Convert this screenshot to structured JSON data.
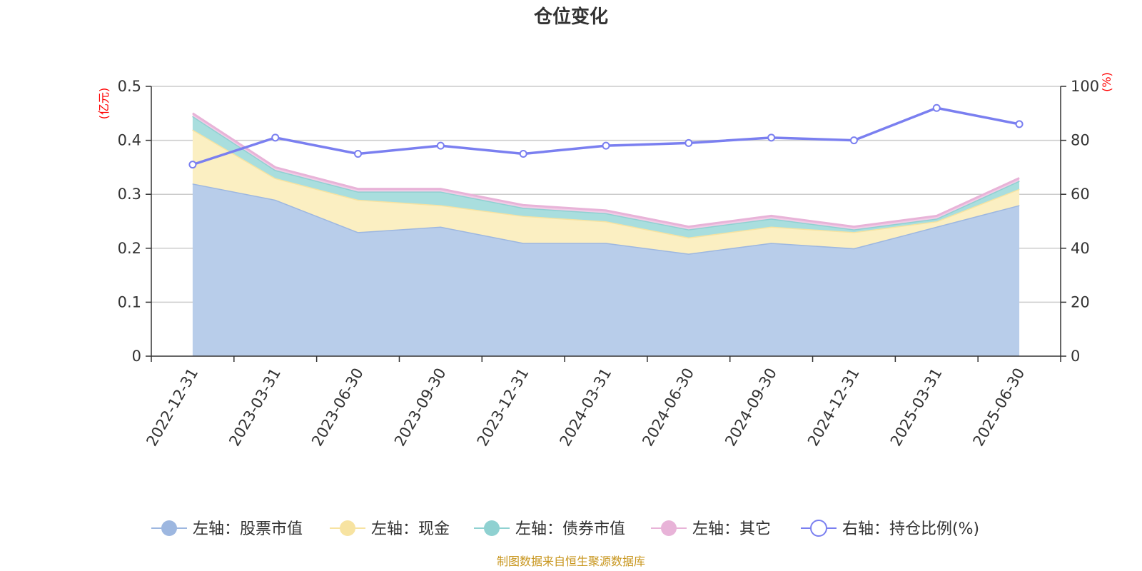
{
  "chart_data": {
    "type": "area",
    "title": "仓位变化",
    "source_note": "制图数据来自恒生聚源数据库",
    "categories": [
      "2022-12-31",
      "2023-03-31",
      "2023-06-30",
      "2023-09-30",
      "2023-12-31",
      "2024-03-31",
      "2024-06-30",
      "2024-09-30",
      "2024-12-31",
      "2025-03-31",
      "2025-06-30"
    ],
    "left_axis": {
      "unit": "(亿元)",
      "ylim": [
        0,
        0.5
      ],
      "ticks": [
        "0",
        "0.1",
        "0.2",
        "0.3",
        "0.4",
        "0.5"
      ]
    },
    "right_axis": {
      "unit": "(%)",
      "ylim": [
        0,
        100
      ],
      "ticks": [
        "0",
        "20",
        "40",
        "60",
        "80",
        "100"
      ]
    },
    "grid": true,
    "legend_position": "bottom",
    "series": [
      {
        "name": "左轴：股票市值",
        "axis": "left",
        "stacked": true,
        "color": "#9db7e0",
        "fill": "#b8cdea",
        "values": [
          0.32,
          0.29,
          0.23,
          0.24,
          0.21,
          0.21,
          0.19,
          0.21,
          0.2,
          0.24,
          0.28
        ]
      },
      {
        "name": "左轴：现金",
        "axis": "left",
        "stacked": true,
        "color": "#f7e3a1",
        "fill": "#fbefc2",
        "values": [
          0.1,
          0.04,
          0.06,
          0.04,
          0.05,
          0.04,
          0.03,
          0.03,
          0.03,
          0.01,
          0.03
        ]
      },
      {
        "name": "左轴：债券市值",
        "axis": "left",
        "stacked": true,
        "color": "#8fd1d1",
        "fill": "#a9dede",
        "values": [
          0.025,
          0.015,
          0.015,
          0.025,
          0.015,
          0.015,
          0.015,
          0.015,
          0.005,
          0.005,
          0.015
        ]
      },
      {
        "name": "左轴：其它",
        "axis": "left",
        "stacked": true,
        "color": "#e8b3d8",
        "fill": "#f0cce6",
        "values": [
          0.005,
          0.005,
          0.005,
          0.005,
          0.005,
          0.005,
          0.005,
          0.005,
          0.005,
          0.005,
          0.005
        ]
      },
      {
        "name": "右轴：持仓比例(%)",
        "axis": "right",
        "stacked": false,
        "color": "#7a7ff0",
        "values": [
          71,
          81,
          75,
          78,
          75,
          78,
          79,
          81,
          80,
          92,
          86
        ]
      }
    ]
  }
}
